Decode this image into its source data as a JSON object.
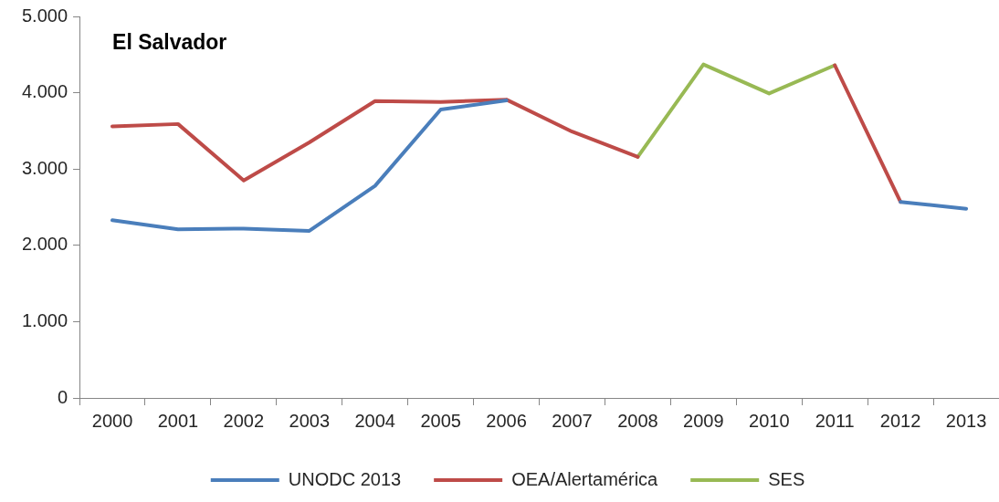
{
  "chart_data": {
    "type": "line",
    "title": "El Salvador",
    "categories": [
      "2000",
      "2001",
      "2002",
      "2003",
      "2004",
      "2005",
      "2006",
      "2007",
      "2008",
      "2009",
      "2010",
      "2011",
      "2012",
      "2013"
    ],
    "series": [
      {
        "name": "UNODC 2013",
        "color": "#4a7ebb",
        "values": [
          2330,
          2210,
          2220,
          2190,
          2780,
          3780,
          3900,
          null,
          null,
          null,
          null,
          null,
          2570,
          2480
        ]
      },
      {
        "name": "OEA/Alertamérica",
        "color": "#be4b48",
        "values": [
          3560,
          3590,
          2850,
          3350,
          3890,
          3880,
          3910,
          3490,
          3160,
          null,
          null,
          4360,
          2570,
          null
        ]
      },
      {
        "name": "SES",
        "color": "#98b954",
        "values": [
          null,
          null,
          null,
          null,
          null,
          null,
          null,
          null,
          3160,
          4370,
          3990,
          4360,
          null,
          null
        ]
      }
    ],
    "ylim": [
      0,
      5000
    ],
    "yticks": [
      {
        "value": 0,
        "label": "0"
      },
      {
        "value": 1000,
        "label": "1.000"
      },
      {
        "value": 2000,
        "label": "2.000"
      },
      {
        "value": 3000,
        "label": "3.000"
      },
      {
        "value": 4000,
        "label": "4.000"
      },
      {
        "value": 5000,
        "label": "5.000"
      }
    ],
    "grid": false,
    "legend": "bottom",
    "marker": "none",
    "line_style": "solid"
  }
}
